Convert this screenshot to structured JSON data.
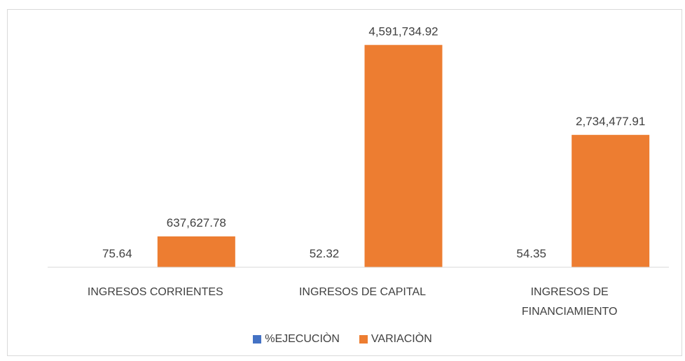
{
  "chart_data": {
    "type": "bar",
    "categories": [
      "INGRESOS CORRIENTES",
      "INGRESOS DE CAPITAL",
      "INGRESOS DE FINANCIAMIENTO"
    ],
    "series": [
      {
        "name": "%EJECUCIÒN",
        "color": "#4472c4",
        "values": [
          75.64,
          52.32,
          54.35
        ]
      },
      {
        "name": "VARIACIÒN",
        "color": "#ed7d31",
        "values": [
          637627.78,
          4591734.92,
          2734477.91
        ],
        "value_labels": [
          "637,627.78",
          "4,591,734.92",
          "2,734,477.91"
        ]
      }
    ],
    "ylim": [
      0,
      5000000
    ],
    "legend": "bottom"
  }
}
